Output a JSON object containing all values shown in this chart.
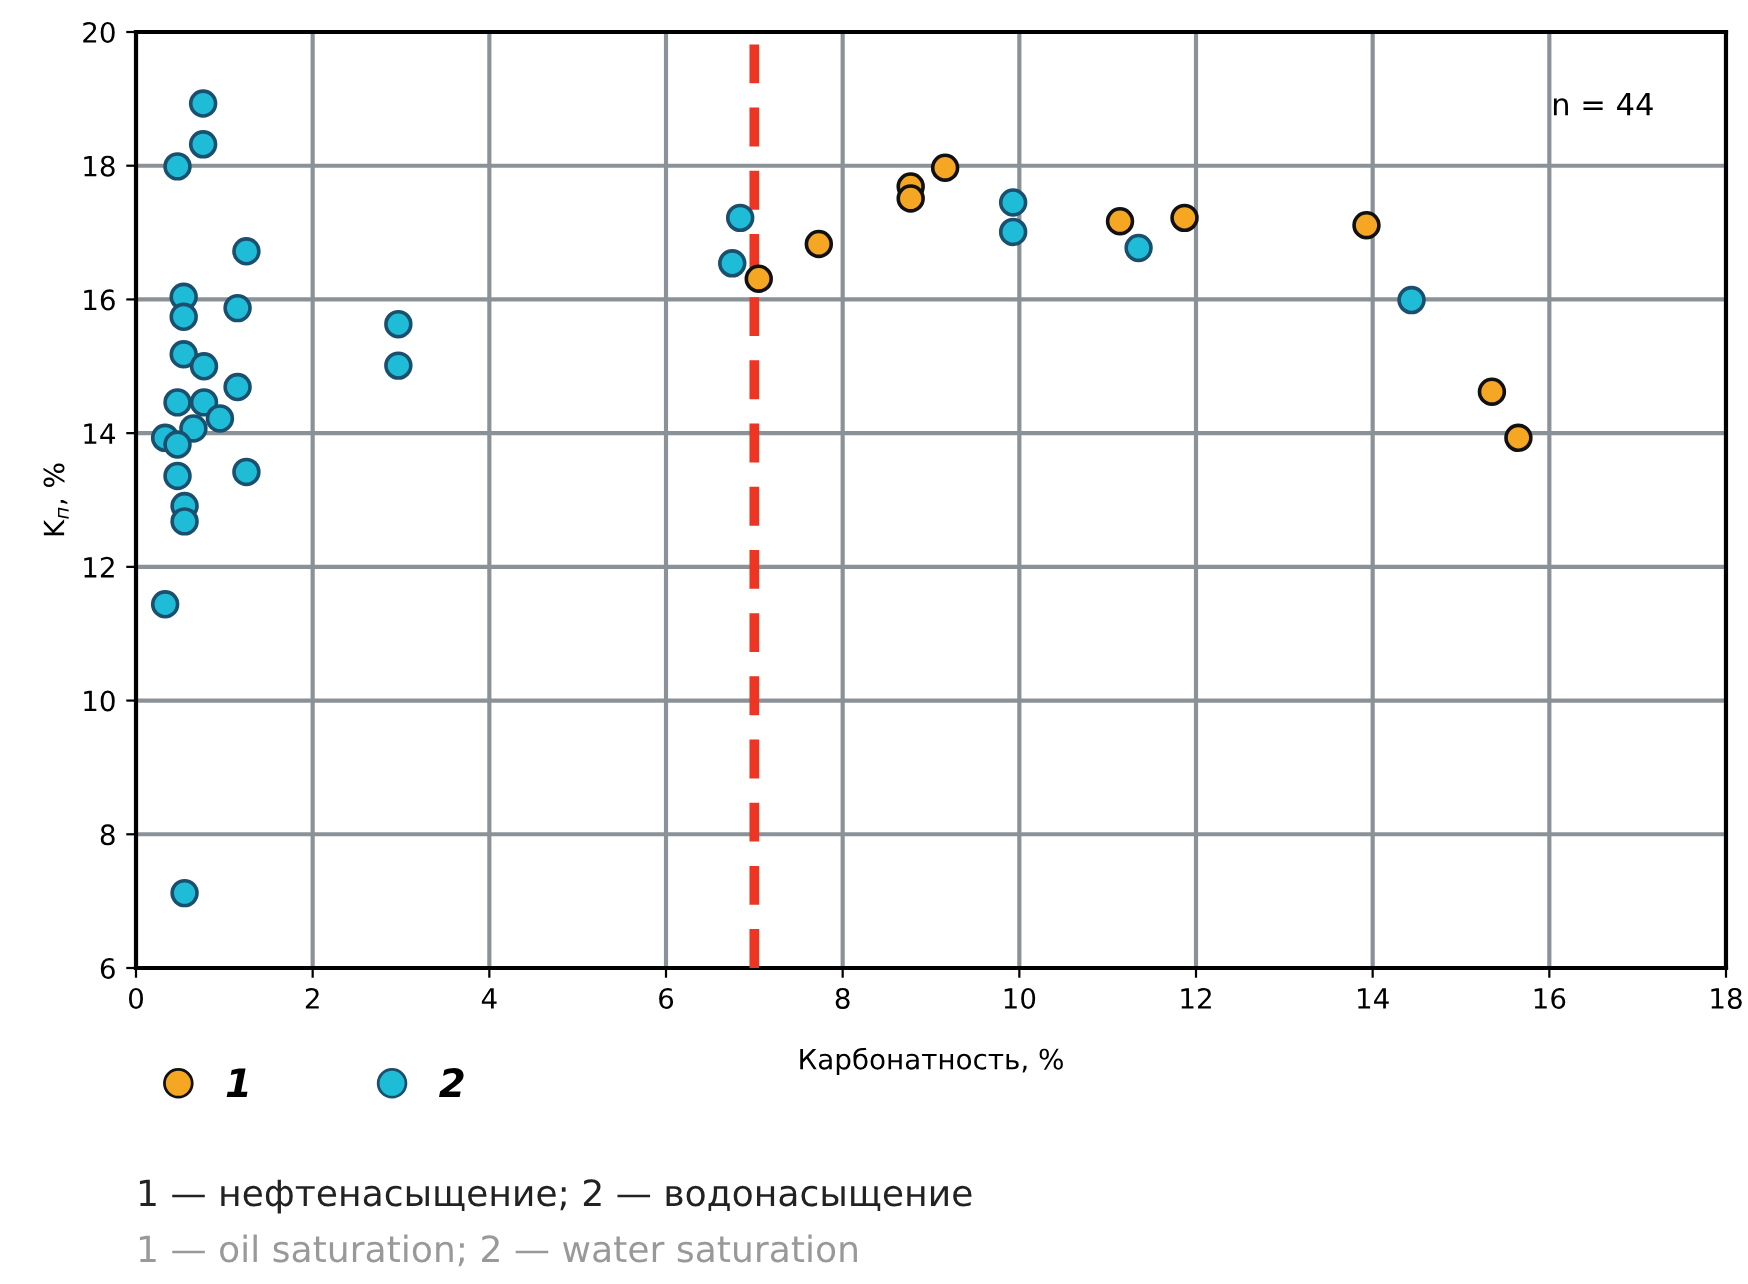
{
  "chart_data": {
    "type": "scatter",
    "xlabel": "Карбонатность, %",
    "ylabel": "K$_{п}$, %",
    "xlim": [
      0,
      18
    ],
    "ylim": [
      6,
      20
    ],
    "xticks": [
      0,
      2,
      4,
      6,
      8,
      10,
      12,
      14,
      16,
      18
    ],
    "yticks": [
      6,
      8,
      10,
      12,
      14,
      16,
      18,
      20
    ],
    "grid": true,
    "marker": "circle",
    "legend": "bottom",
    "series": [
      {
        "name": "1",
        "color": "#f5a623",
        "x": [
          7.05,
          7.73,
          8.77,
          8.77,
          9.16,
          11.14,
          11.87,
          13.93,
          15.35,
          15.65
        ],
        "values": [
          16.31,
          16.83,
          17.69,
          17.51,
          17.97,
          17.17,
          17.22,
          17.11,
          14.62,
          13.93
        ]
      },
      {
        "name": "2",
        "color": "#1fbcd8",
        "x": [
          0.76,
          0.76,
          0.47,
          1.25,
          0.54,
          0.54,
          1.15,
          0.54,
          0.77,
          1.15,
          0.47,
          0.77,
          0.95,
          0.65,
          0.33,
          0.47,
          0.47,
          1.25,
          0.55,
          0.55,
          0.33,
          0.55,
          2.97,
          2.97,
          6.84,
          6.75,
          9.93,
          9.93,
          11.35,
          14.44
        ],
        "values": [
          18.93,
          18.32,
          17.99,
          16.72,
          16.04,
          15.74,
          15.87,
          15.18,
          15.0,
          14.69,
          14.46,
          14.46,
          14.22,
          14.07,
          13.93,
          13.83,
          13.36,
          13.42,
          12.91,
          12.68,
          11.44,
          7.12,
          15.63,
          15.01,
          17.22,
          16.54,
          17.45,
          17.01,
          16.77,
          15.99
        ]
      }
    ],
    "ref_lines": [
      {
        "axis": "x",
        "value": 7,
        "color": "#ee3524",
        "line_style": "dashed"
      }
    ],
    "annotations": [
      "n = 44",
      "1 — нефтенасыщение; 2 — водонасыщение",
      "1 — oil saturation; 2 — water saturation"
    ]
  }
}
